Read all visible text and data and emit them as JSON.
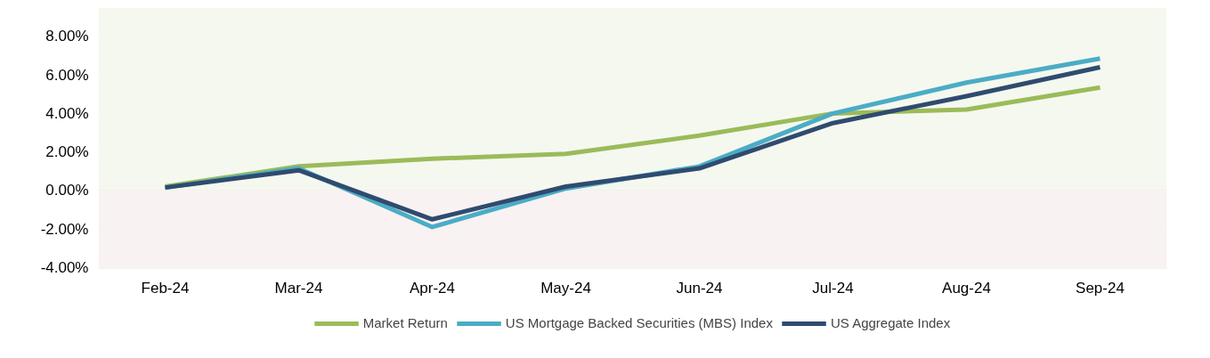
{
  "chart_data": {
    "type": "line",
    "categories": [
      "Feb-24",
      "Mar-24",
      "Apr-24",
      "May-24",
      "Jun-24",
      "Jul-24",
      "Aug-24",
      "Sep-24"
    ],
    "series": [
      {
        "name": "Market Return",
        "color": "#9bbb59",
        "values": [
          0.2,
          1.25,
          1.65,
          1.9,
          2.85,
          4.0,
          4.2,
          5.35
        ]
      },
      {
        "name": "US Mortgage Backed Securities (MBS) Index",
        "color": "#4bacc6",
        "values": [
          0.15,
          1.15,
          -1.9,
          0.1,
          1.25,
          4.0,
          5.6,
          6.85
        ]
      },
      {
        "name": "US Aggregate Index",
        "color": "#2f4b6e",
        "values": [
          0.15,
          1.05,
          -1.5,
          0.2,
          1.15,
          3.5,
          4.9,
          6.4
        ]
      }
    ],
    "ylim": [
      -4.1,
      9.5
    ],
    "yticks": [
      {
        "value": -4,
        "label": "-4.00%"
      },
      {
        "value": -2,
        "label": "-2.00%"
      },
      {
        "value": 0,
        "label": "0.00%"
      },
      {
        "value": 2,
        "label": "2.00%"
      },
      {
        "value": 4,
        "label": "4.00%"
      },
      {
        "value": 6,
        "label": "6.00%"
      },
      {
        "value": 8,
        "label": "8.00%"
      }
    ],
    "bands": [
      {
        "axis": "y",
        "from": 0,
        "to": 9.5,
        "color": "#f5f8ef"
      },
      {
        "axis": "y",
        "from": -4.1,
        "to": 0,
        "color": "#f9f2f2"
      }
    ],
    "grid": "y",
    "legend": "bottom",
    "marker": "none",
    "line_style": "solid"
  }
}
